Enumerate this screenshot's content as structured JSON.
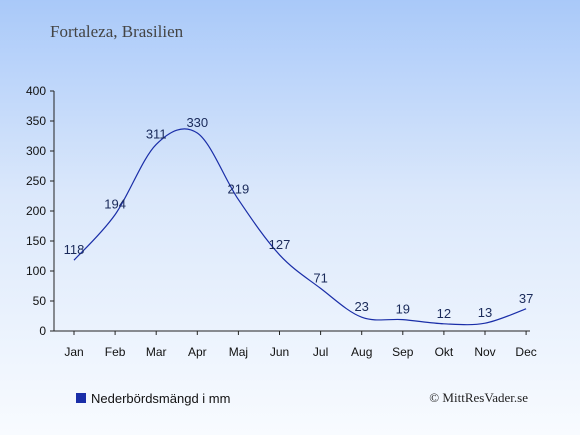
{
  "title": "Fortaleza, Brasilien",
  "legend": {
    "label": "Nederbördsmängd i mm",
    "color": "#1a2ea8"
  },
  "credit": "© MittResVader.se",
  "chart_data": {
    "type": "line",
    "title": "Fortaleza, Brasilien",
    "categories": [
      "Jan",
      "Feb",
      "Mar",
      "Apr",
      "Maj",
      "Jun",
      "Jul",
      "Aug",
      "Sep",
      "Okt",
      "Nov",
      "Dec"
    ],
    "series": [
      {
        "name": "Nederbördsmängd i mm",
        "values": [
          118,
          194,
          311,
          330,
          219,
          127,
          71,
          23,
          19,
          12,
          13,
          37
        ]
      }
    ],
    "ylim": [
      0,
      400
    ],
    "yticks": [
      0,
      50,
      100,
      150,
      200,
      250,
      300,
      350,
      400
    ],
    "grid": false,
    "legend_position": "bottom-left",
    "line_color": "#1a2ea8"
  }
}
